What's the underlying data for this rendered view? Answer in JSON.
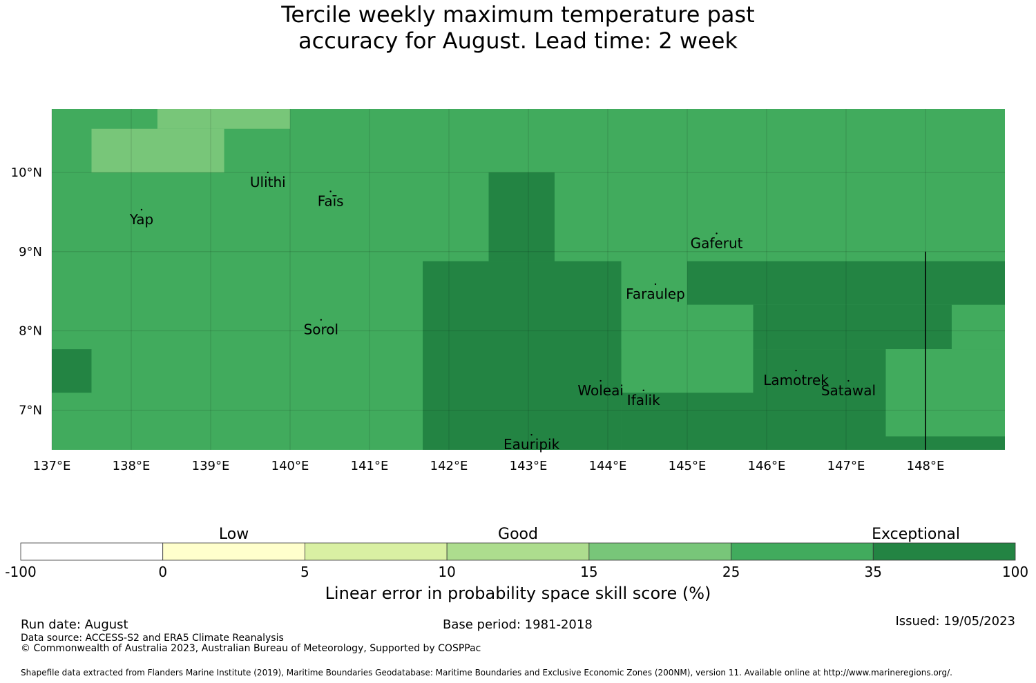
{
  "title": {
    "line1": "Tercile weekly maximum temperature past",
    "line2": "accuracy for August. Lead time: 2 week"
  },
  "map": {
    "lon_range": [
      137.0,
      149.0
    ],
    "lat_range": [
      6.5,
      10.8
    ],
    "lon_ticks": [
      {
        "value": 137,
        "label": "137°E"
      },
      {
        "value": 138,
        "label": "138°E"
      },
      {
        "value": 139,
        "label": "139°E"
      },
      {
        "value": 140,
        "label": "140°E"
      },
      {
        "value": 141,
        "label": "141°E"
      },
      {
        "value": 142,
        "label": "142°E"
      },
      {
        "value": 143,
        "label": "143°E"
      },
      {
        "value": 144,
        "label": "144°E"
      },
      {
        "value": 145,
        "label": "145°E"
      },
      {
        "value": 146,
        "label": "146°E"
      },
      {
        "value": 147,
        "label": "147°E"
      },
      {
        "value": 148,
        "label": "148°E"
      }
    ],
    "lat_ticks": [
      {
        "value": 10,
        "label": "10°N"
      },
      {
        "value": 9,
        "label": "9°N"
      },
      {
        "value": 8,
        "label": "8°N"
      },
      {
        "value": 7,
        "label": "7°N"
      }
    ],
    "grid": true,
    "background_color": "#41ab5d",
    "cells": [
      {
        "lon0": 137.0,
        "lon1": 138.33,
        "lat0": 10.6,
        "lat1": 10.8,
        "color": "#41ab5d"
      },
      {
        "lon0": 138.33,
        "lon1": 140.0,
        "lat0": 10.55,
        "lat1": 10.8,
        "color": "#78c679"
      },
      {
        "lon0": 137.5,
        "lon1": 139.17,
        "lat0": 10.0,
        "lat1": 10.55,
        "color": "#78c679"
      },
      {
        "lon0": 142.5,
        "lon1": 143.33,
        "lat0": 8.88,
        "lat1": 10.0,
        "color": "#238443"
      },
      {
        "lon0": 141.67,
        "lon1": 144.17,
        "lat0": 6.5,
        "lat1": 8.88,
        "color": "#238443"
      },
      {
        "lon0": 145.0,
        "lon1": 149.0,
        "lat0": 8.33,
        "lat1": 8.88,
        "color": "#238443"
      },
      {
        "lon0": 145.83,
        "lon1": 149.0,
        "lat0": 7.77,
        "lat1": 8.33,
        "color": "#238443"
      },
      {
        "lon0": 144.17,
        "lon1": 147.5,
        "lat0": 6.5,
        "lat1": 7.77,
        "color": "#238443"
      },
      {
        "lon0": 147.5,
        "lon1": 149.0,
        "lat0": 6.5,
        "lat1": 6.67,
        "color": "#238443"
      },
      {
        "lon0": 148.33,
        "lon1": 149.0,
        "lat0": 7.77,
        "lat1": 8.33,
        "color": "#41ab5d"
      },
      {
        "lon0": 147.5,
        "lon1": 149.0,
        "lat0": 6.67,
        "lat1": 7.77,
        "color": "#41ab5d"
      },
      {
        "lon0": 144.17,
        "lon1": 145.0,
        "lat0": 7.22,
        "lat1": 8.88,
        "color": "#41ab5d"
      },
      {
        "lon0": 145.0,
        "lon1": 145.83,
        "lat0": 7.22,
        "lat1": 8.33,
        "color": "#41ab5d"
      },
      {
        "lon0": 137.0,
        "lon1": 137.5,
        "lat0": 7.22,
        "lat1": 7.77,
        "color": "#238443"
      }
    ],
    "boundary_line": {
      "lon": 148.0,
      "lat0": 6.5,
      "lat1": 9.0
    },
    "places": [
      {
        "name": "Ulithi",
        "lon": 139.72,
        "lat": 10.0
      },
      {
        "name": "Faīs",
        "lon": 140.51,
        "lat": 9.76
      },
      {
        "name": "Yap",
        "lon": 138.13,
        "lat": 9.53
      },
      {
        "name": "Gaferut",
        "lon": 145.37,
        "lat": 9.23
      },
      {
        "name": "Faraulep",
        "lon": 144.6,
        "lat": 8.59
      },
      {
        "name": "Sorol",
        "lon": 140.39,
        "lat": 8.14
      },
      {
        "name": "Woleai",
        "lon": 143.91,
        "lat": 7.37
      },
      {
        "name": "Ifalik",
        "lon": 144.45,
        "lat": 7.25
      },
      {
        "name": "Lamotrek",
        "lon": 146.37,
        "lat": 7.5
      },
      {
        "name": "Satawal",
        "lon": 147.03,
        "lat": 7.37
      },
      {
        "name": "Eauripik",
        "lon": 143.04,
        "lat": 6.69
      }
    ]
  },
  "colorbar": {
    "bins": [
      {
        "from": "-100",
        "to": "0",
        "color": "#ffffff"
      },
      {
        "from": "0",
        "to": "5",
        "color": "#ffffcc"
      },
      {
        "from": "5",
        "to": "10",
        "color": "#d9f0a3"
      },
      {
        "from": "10",
        "to": "15",
        "color": "#addd8e"
      },
      {
        "from": "15",
        "to": "25",
        "color": "#78c679"
      },
      {
        "from": "25",
        "to": "35",
        "color": "#41ab5d"
      },
      {
        "from": "35",
        "to": "100",
        "color": "#238443"
      }
    ],
    "tick_labels": [
      "-100",
      "0",
      "5",
      "10",
      "15",
      "25",
      "35",
      "100"
    ],
    "category_labels": [
      "Low",
      "Good",
      "Exceptional"
    ],
    "label": "Linear error in probability space skill score (%)"
  },
  "footer": {
    "run_date": "Run date: August",
    "base_period": "Base period: 1981-2018",
    "issued": "Issued: 19/05/2023",
    "data_source": "Data source: ACCESS-S2 and ERA5 Climate Reanalysis",
    "copyright": "© Commonwealth of Australia 2023, Australian Bureau of Meteorology, Supported by COSPPac",
    "shapefile": "Shapefile data extracted from Flanders Marine Institute (2019), Maritime Boundaries Geodatabase: Maritime Boundaries and Exclusive Economic Zones (200NM), version 11. Available online at http://www.marineregions.org/."
  }
}
